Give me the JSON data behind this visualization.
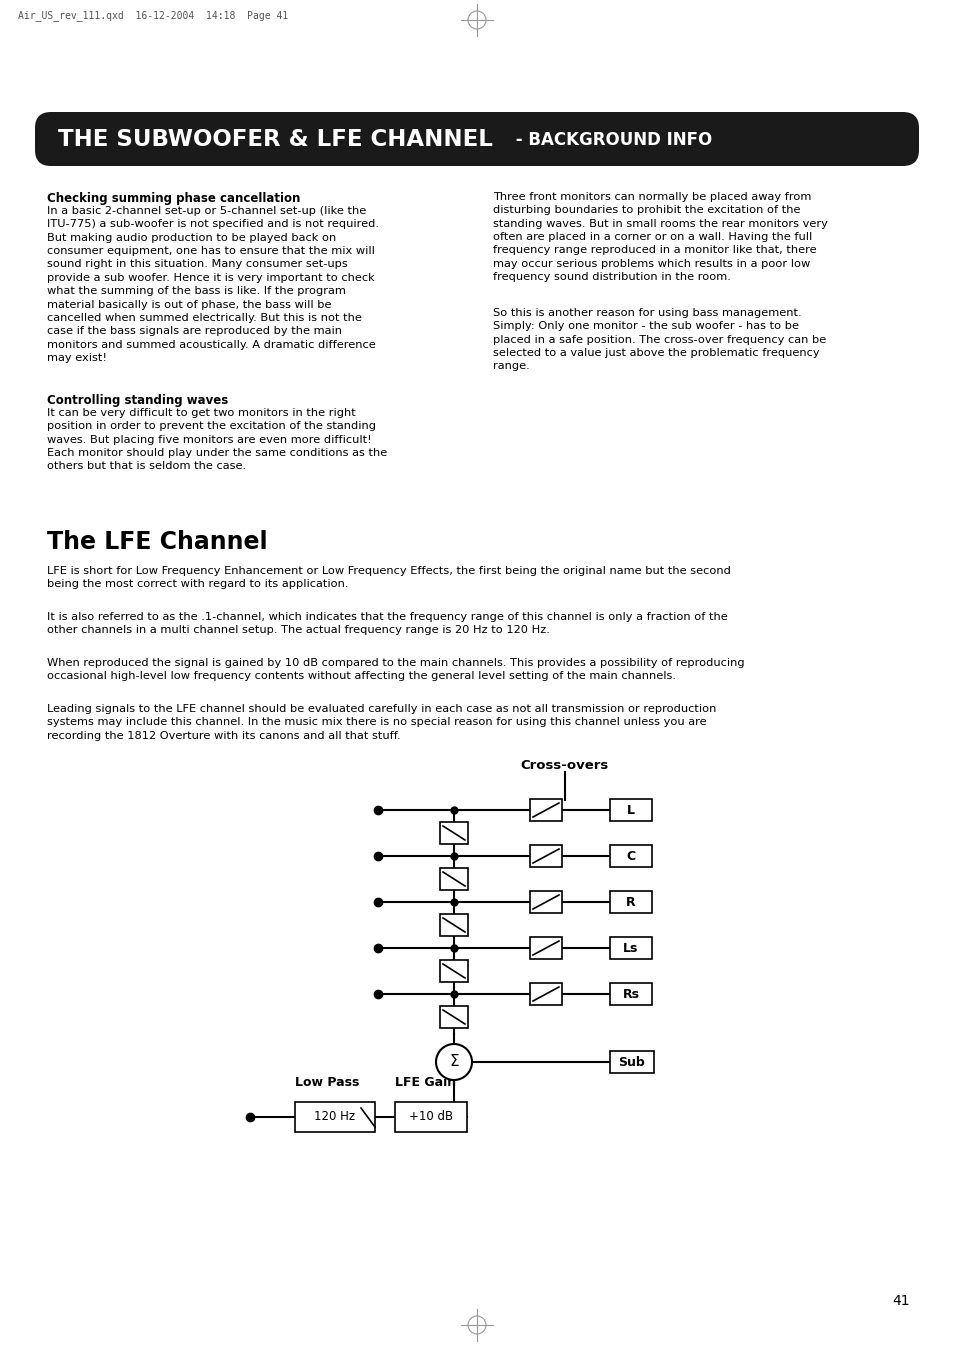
{
  "title_main": "THE SUBWOOFER & LFE CHANNEL",
  "title_sub": " - BACKGROUND INFO",
  "header_bg": "#1a1a1a",
  "page_bg": "#ffffff",
  "page_number": "41",
  "watermark": "Air_US_rev_111.qxd  16-12-2004  14:18  Page 41",
  "section1_title": "Checking summing phase cancellation",
  "section1_body": "In a basic 2-channel set-up or 5-channel set-up (like the\nITU-775) a sub-woofer is not specified and is not required.\nBut making audio production to be played back on\nconsumer equipment, one has to ensure that the mix will\nsound right in this situation. Many consumer set-ups\nprovide a sub woofer. Hence it is very important to check\nwhat the summing of the bass is like. If the program\nmaterial basically is out of phase, the bass will be\ncancelled when summed electrically. But this is not the\ncase if the bass signals are reproduced by the main\nmonitors and summed acoustically. A dramatic difference\nmay exist!",
  "section2_title": "Controlling standing waves",
  "section2_body": "It can be very difficult to get two monitors in the right\nposition in order to prevent the excitation of the standing\nwaves. But placing five monitors are even more difficult!\nEach monitor should play under the same conditions as the\nothers but that is seldom the case.",
  "right_col1": "Three front monitors can normally be placed away from\ndisturbing boundaries to prohibit the excitation of the\nstanding waves. But in small rooms the rear monitors very\noften are placed in a corner or on a wall. Having the full\nfrequency range reproduced in a monitor like that, there\nmay occur serious problems which results in a poor low\nfrequency sound distribution in the room.",
  "right_col2": "So this is another reason for using bass management.\nSimply: Only one monitor - the sub woofer - has to be\nplaced in a safe position. The cross-over frequency can be\nselected to a value just above the problematic frequency\nrange.",
  "lfe_title": "The LFE Channel",
  "lfe_para1": "LFE is short for Low Frequency Enhancement or Low Frequency Effects, the first being the original name but the second\nbeing the most correct with regard to its application.",
  "lfe_para2": "It is also referred to as the .1-channel, which indicates that the frequency range of this channel is only a fraction of the\nother channels in a multi channel setup. The actual frequency range is 20 Hz to 120 Hz.",
  "lfe_para3": "When reproduced the signal is gained by 10 dB compared to the main channels. This provides a possibility of reproducing\noccasional high-level low frequency contents without affecting the general level setting of the main channels.",
  "lfe_para4": "Leading signals to the LFE channel should be evaluated carefully in each case as not all transmission or reproduction\nsystems may include this channel. In the music mix there is no special reason for using this channel unless you are\nrecording the 1812 Overture with its canons and all that stuff.",
  "diagram_title": "Cross-overs",
  "channels": [
    "L",
    "C",
    "R",
    "Ls",
    "Rs"
  ],
  "sub_label": "Sub",
  "low_pass_label": "Low Pass",
  "lfe_gain_label": "LFE Gain",
  "low_pass_value": "120 Hz",
  "lfe_gain_value": "+10 dB"
}
